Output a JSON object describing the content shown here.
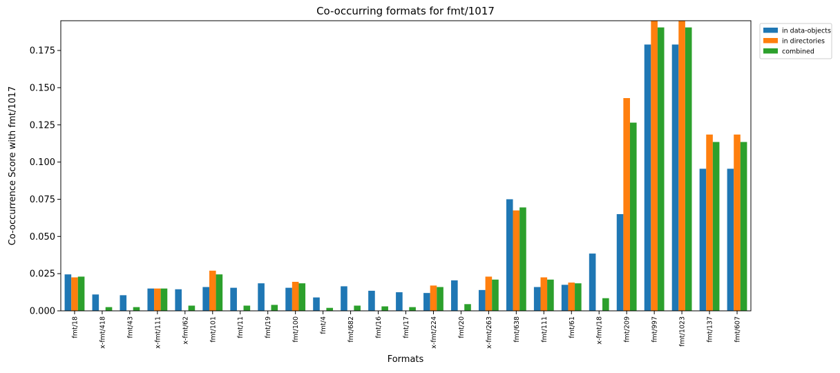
{
  "chart_data": {
    "type": "bar",
    "title": "Co-occurring formats for fmt/1017",
    "xlabel": "Formats",
    "ylabel": "Co-occurrence Score with fmt/1017",
    "ylim": [
      0,
      0.195
    ],
    "yticks": [
      "0.000",
      "0.025",
      "0.050",
      "0.075",
      "0.100",
      "0.125",
      "0.150",
      "0.175"
    ],
    "categories": [
      "fmt/18",
      "x-fmt/418",
      "fmt/43",
      "x-fmt/111",
      "x-fmt/62",
      "fmt/101",
      "fmt/11",
      "fmt/19",
      "fmt/100",
      "fmt/4",
      "fmt/682",
      "fmt/16",
      "fmt/17",
      "x-fmt/224",
      "fmt/20",
      "x-fmt/263",
      "fmt/638",
      "fmt/111",
      "fmt/61",
      "x-fmt/18",
      "fmt/209",
      "fmt/997",
      "fmt/1023",
      "fmt/137",
      "fmt/607"
    ],
    "series": [
      {
        "name": "in data-objects",
        "color": "#1f77b4",
        "values": [
          0.0245,
          0.011,
          0.0105,
          0.015,
          0.0145,
          0.016,
          0.0155,
          0.0185,
          0.0155,
          0.009,
          0.0165,
          0.0135,
          0.0125,
          0.012,
          0.0205,
          0.014,
          0.075,
          0.016,
          0.0175,
          0.0385,
          0.065,
          0.179,
          0.179,
          0.0955,
          0.0955
        ]
      },
      {
        "name": "in directories",
        "color": "#ff7f0e",
        "values": [
          0.0225,
          0.0,
          0.0,
          0.015,
          0.0,
          0.027,
          0.0,
          0.0,
          0.0195,
          0.0,
          0.0,
          0.0,
          0.0,
          0.017,
          0.0,
          0.023,
          0.0675,
          0.0225,
          0.019,
          0.0,
          0.143,
          0.195,
          0.195,
          0.1185,
          0.1185
        ]
      },
      {
        "name": "combined",
        "color": "#2ca02c",
        "values": [
          0.023,
          0.0025,
          0.0025,
          0.015,
          0.0035,
          0.0245,
          0.0035,
          0.004,
          0.0185,
          0.002,
          0.0035,
          0.003,
          0.0025,
          0.016,
          0.0045,
          0.021,
          0.0695,
          0.021,
          0.0185,
          0.0085,
          0.1265,
          0.1905,
          0.1905,
          0.1135,
          0.1135
        ]
      }
    ],
    "legend_placement": "outside-top-right",
    "grid": false
  }
}
